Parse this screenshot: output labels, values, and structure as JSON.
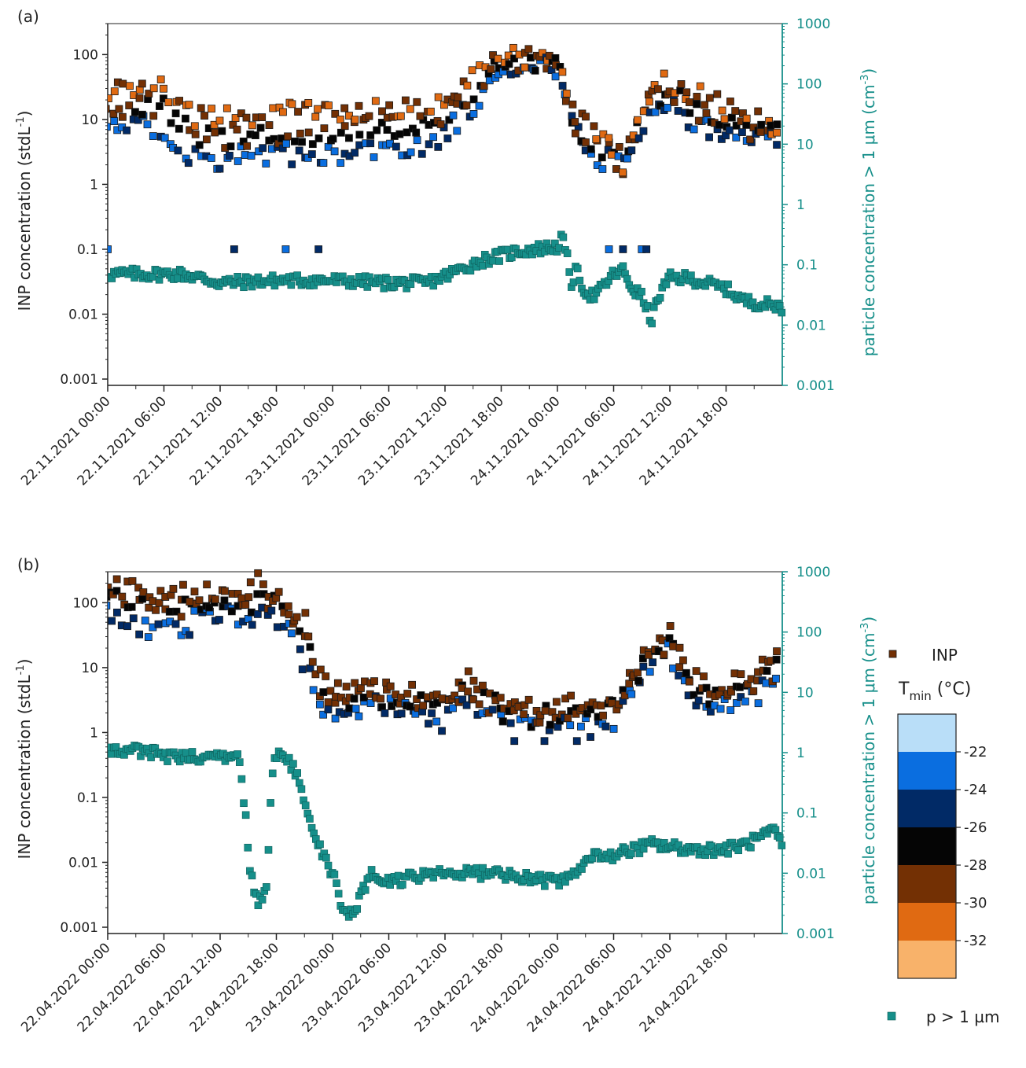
{
  "chart_data": [
    {
      "panel_label": "(a)",
      "type": "scatter",
      "ylabel_left": "INP concentration (stdL",
      "ylabel_left_sup": "-1",
      "ylabel_left_end": ")",
      "ylabel_right": "particle concentration > 1 μm (cm",
      "ylabel_right_sup": "-3",
      "ylabel_right_end": ")",
      "x_range": [
        "2021-11-22 00:00",
        "2021-11-24 23:59"
      ],
      "y_left_log": true,
      "y_left_range": [
        0.0008,
        300
      ],
      "y_left_ticks": [
        "0.001",
        "0.01",
        "0.1",
        "1",
        "10",
        "100"
      ],
      "y_right_log": true,
      "y_right_range": [
        0.001,
        1000
      ],
      "y_right_ticks": [
        "0.001",
        "0.01",
        "0.1",
        "1",
        "10",
        "100",
        "1000"
      ],
      "x_tick_labels": [
        "22.11.2021 00:00",
        "22.11.2021 06:00",
        "22.11.2021 12:00",
        "22.11.2021 18:00",
        "23.11.2021 00:00",
        "23.11.2021 06:00",
        "23.11.2021 12:00",
        "23.11.2021 18:00",
        "24.11.2021 00:00",
        "24.11.2021 06:00",
        "24.11.2021 12:00",
        "24.11.2021 18:00"
      ],
      "inp_profile_hours": [
        0,
        3,
        6,
        9,
        12,
        18,
        24,
        30,
        33,
        36,
        40,
        42,
        44,
        47,
        48,
        49.5,
        51,
        53,
        55,
        58,
        60,
        64,
        68,
        72
      ],
      "inp_profile_warm": [
        25,
        30,
        30,
        12,
        10,
        12,
        13,
        14,
        14,
        20,
        55,
        100,
        90,
        110,
        100,
        12,
        10,
        5,
        2,
        35,
        35,
        20,
        10,
        8
      ],
      "inp_profile_cold": [
        6,
        8,
        7,
        3,
        2.5,
        3,
        3,
        4,
        4,
        6,
        25,
        60,
        55,
        70,
        60,
        8,
        3,
        2.5,
        2,
        15,
        15,
        8,
        5,
        4
      ],
      "particle_profile_hours": [
        0,
        4,
        8,
        10,
        12,
        18,
        24,
        30,
        34,
        36,
        40,
        44,
        48,
        48.5,
        49,
        49.5,
        50,
        51,
        52,
        54,
        55,
        56,
        57,
        58,
        59,
        60,
        62,
        66,
        68,
        72
      ],
      "particle_profile_values": [
        0.07,
        0.07,
        0.07,
        0.06,
        0.05,
        0.055,
        0.055,
        0.05,
        0.05,
        0.065,
        0.12,
        0.17,
        0.2,
        0.28,
        0.14,
        0.05,
        0.08,
        0.035,
        0.03,
        0.07,
        0.08,
        0.04,
        0.03,
        0.012,
        0.035,
        0.06,
        0.06,
        0.04,
        0.025,
        0.02
      ]
    },
    {
      "panel_label": "(b)",
      "type": "scatter",
      "ylabel_left": "INP concentration (stdL",
      "ylabel_left_sup": "-1",
      "ylabel_left_end": ")",
      "ylabel_right": "particle concentration > 1 μm (cm",
      "ylabel_right_sup": "-3",
      "ylabel_right_end": ")",
      "x_range": [
        "2022-04-22 00:00",
        "2022-04-24 23:59"
      ],
      "y_left_log": true,
      "y_left_range": [
        0.0008,
        300
      ],
      "y_left_ticks": [
        "0.001",
        "0.01",
        "0.1",
        "1",
        "10",
        "100"
      ],
      "y_right_log": true,
      "y_right_range": [
        0.001,
        1000
      ],
      "y_right_ticks": [
        "0.001",
        "0.01",
        "0.1",
        "1",
        "10",
        "100",
        "1000"
      ],
      "x_tick_labels": [
        "22.04.2022 00:00",
        "22.04.2022 06:00",
        "22.04.2022 12:00",
        "22.04.2022 18:00",
        "23.04.2022 00:00",
        "23.04.2022 06:00",
        "23.04.2022 12:00",
        "23.04.2022 18:00",
        "24.04.2022 00:00",
        "24.04.2022 06:00",
        "24.04.2022 12:00",
        "24.04.2022 18:00"
      ],
      "inp_profile_hours": [
        0,
        4,
        8,
        12,
        15,
        16,
        18,
        19,
        21,
        23,
        25,
        30,
        36,
        38,
        42,
        46,
        48,
        52,
        54,
        56,
        58,
        60,
        62,
        64,
        68,
        72
      ],
      "inp_profile_warm": [
        180,
        160,
        150,
        160,
        120,
        200,
        120,
        90,
        60,
        5,
        4,
        5,
        3,
        7,
        3,
        2.5,
        2.5,
        2.5,
        3,
        8,
        25,
        35,
        8,
        5,
        6,
        15
      ],
      "inp_profile_cold": [
        80,
        40,
        40,
        80,
        60,
        60,
        60,
        40,
        12,
        2,
        1.5,
        3,
        1.5,
        4,
        1.5,
        1.2,
        1.2,
        1.2,
        1.5,
        5,
        12,
        18,
        4,
        3,
        3,
        8
      ],
      "particle_profile_hours": [
        0,
        3,
        6,
        9,
        12,
        14,
        14.7,
        15.2,
        16,
        17,
        17.5,
        18,
        19,
        20,
        21,
        22,
        23,
        24,
        25,
        26,
        27,
        28,
        29,
        30,
        33,
        36,
        40,
        44,
        48,
        50,
        52,
        54,
        58,
        62,
        66,
        68,
        70,
        71,
        72
      ],
      "particle_profile_values": [
        1.1,
        1.1,
        0.9,
        0.85,
        0.85,
        0.9,
        0.09,
        0.01,
        0.003,
        0.005,
        0.4,
        1.0,
        0.8,
        0.5,
        0.15,
        0.05,
        0.02,
        0.01,
        0.003,
        0.002,
        0.004,
        0.01,
        0.008,
        0.007,
        0.009,
        0.01,
        0.01,
        0.009,
        0.007,
        0.01,
        0.02,
        0.02,
        0.03,
        0.025,
        0.025,
        0.03,
        0.04,
        0.05,
        0.03
      ]
    }
  ],
  "legend": {
    "inp_label": "INP",
    "tmin_label": "T",
    "tmin_sub": "min",
    "tmin_unit": " (°C)",
    "colorbar_ticks": [
      "-22",
      "-24",
      "-26",
      "-28",
      "-30",
      "-32"
    ],
    "colorbar_colors": [
      "#f8b26a",
      "#e06a12",
      "#733004",
      "#050505",
      "#012a66",
      "#0a6ee0",
      "#b9def8"
    ],
    "inp_marker_color": "#733004",
    "particle_label": "p > 1 µm",
    "particle_color": "#168f8a"
  }
}
